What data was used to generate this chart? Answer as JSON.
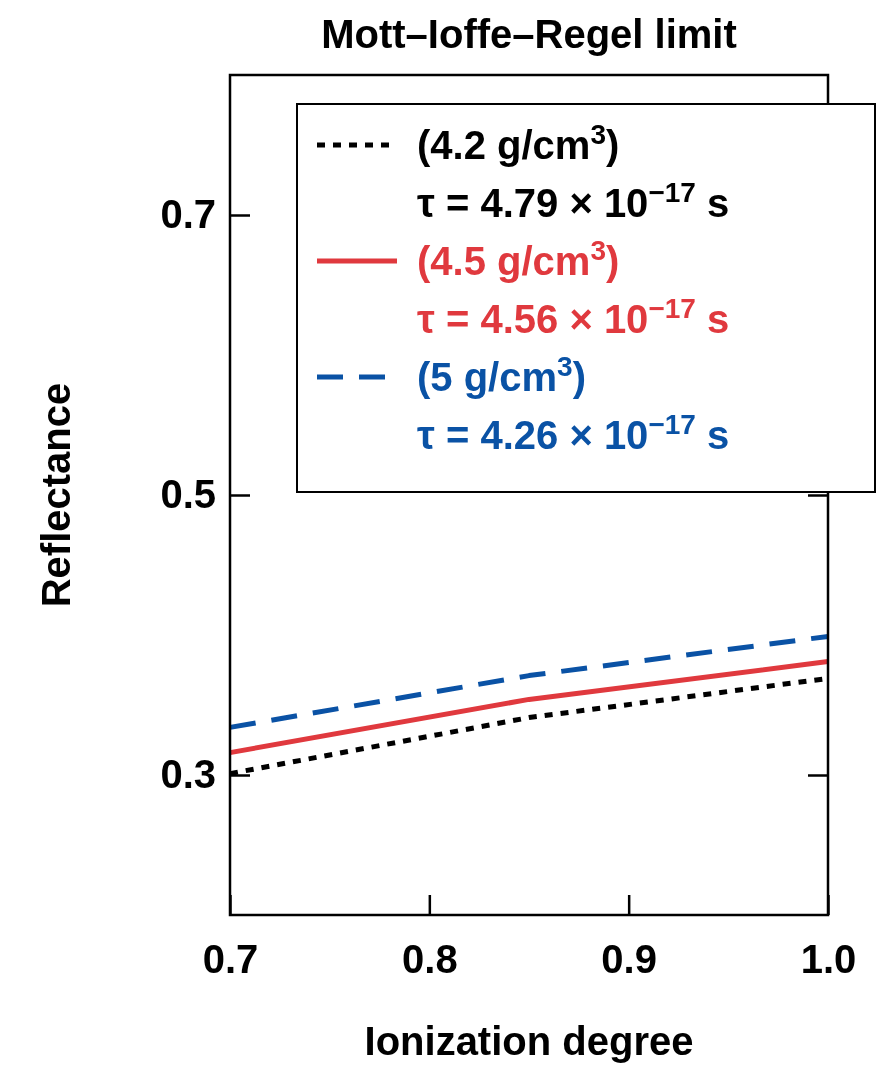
{
  "chart_data": {
    "type": "line",
    "title": "Mott–Ioffe–Regel limit",
    "xlabel": "Ionization degree",
    "ylabel": "Reflectance",
    "x": [
      0.7,
      0.85,
      1.0
    ],
    "series": [
      {
        "name": "(4.2 g/cm$^{3}$)\nτ = 4.79 × 10$^{−17}$ s",
        "color": "#000000",
        "line_style": "dotted",
        "values": [
          0.301,
          0.341,
          0.369
        ]
      },
      {
        "name": "(4.5 g/cm$^{3}$)\nτ = 4.56 × 10$^{−17}$ s",
        "color": "#e0393e",
        "line_style": "solid",
        "values": [
          0.316,
          0.354,
          0.381
        ]
      },
      {
        "name": "(5 g/cm$^{3}$)\nτ = 4.26 × 10$^{−17}$ s",
        "color": "#0a52a5",
        "line_style": "dashed",
        "values": [
          0.334,
          0.371,
          0.399
        ]
      }
    ],
    "xlim": [
      0.7,
      1.0
    ],
    "ylim": [
      0.2,
      0.8
    ],
    "xticks": [
      {
        "value": 0.7,
        "label": "0.7"
      },
      {
        "value": 0.8,
        "label": "0.8"
      },
      {
        "value": 0.9,
        "label": "0.9"
      },
      {
        "value": 1.0,
        "label": "1.0"
      }
    ],
    "yticks": [
      0.3,
      0.5,
      0.7
    ],
    "legend": "top right"
  }
}
